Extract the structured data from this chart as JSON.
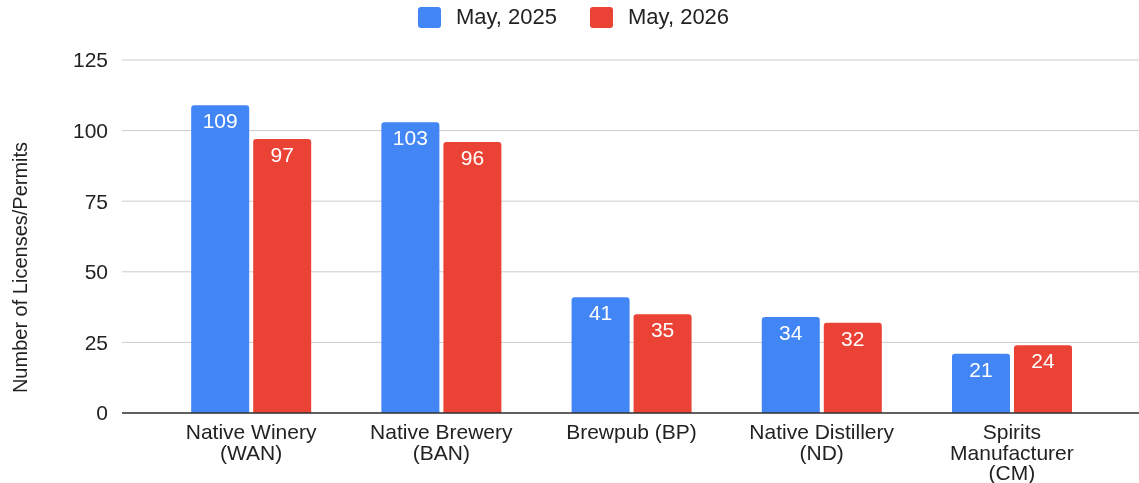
{
  "chart_data": {
    "type": "bar",
    "ylabel": "Number of Licenses/Permits",
    "categories": [
      "Native Winery (WAN)",
      "Native Brewery (BAN)",
      "Brewpub (BP)",
      "Native Distillery (ND)",
      "Spirits Manufacturer (CM)"
    ],
    "series": [
      {
        "name": "May, 2025",
        "color": "#4285f4",
        "values": [
          109,
          103,
          41,
          34,
          21
        ]
      },
      {
        "name": "May, 2026",
        "color": "#ea4335",
        "values": [
          97,
          96,
          35,
          32,
          24
        ]
      }
    ],
    "ylim": [
      0,
      125
    ],
    "yticks": [
      0,
      25,
      50,
      75,
      100,
      125
    ],
    "grid": "y",
    "legend": "top",
    "data_labels": true
  }
}
